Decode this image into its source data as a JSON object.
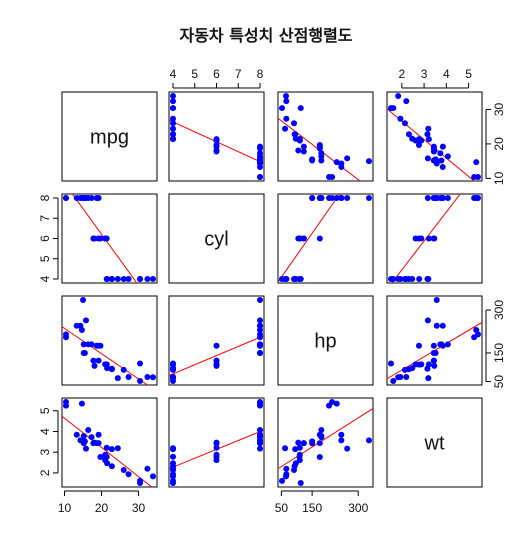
{
  "chart_data": {
    "type": "scatter",
    "title": "자동차 특성치 산점행렬도",
    "variables": [
      "mpg",
      "cyl",
      "hp",
      "wt"
    ],
    "ranges": {
      "mpg": [
        10.4,
        33.9
      ],
      "cyl": [
        4,
        8
      ],
      "hp": [
        52,
        335
      ],
      "wt": [
        1.513,
        5.424
      ]
    },
    "ticks": {
      "mpg": [
        10,
        20,
        30
      ],
      "cyl": [
        4,
        5,
        6,
        7,
        8
      ],
      "hp": [
        50,
        150,
        300
      ],
      "wt": [
        2,
        3,
        4,
        5
      ]
    },
    "point_color": "#0000ff",
    "line_color": "#ff0000",
    "panel_border_color": "#000000",
    "regression_lines": true,
    "observations": [
      {
        "mpg": 21.0,
        "cyl": 6,
        "hp": 110,
        "wt": 2.62
      },
      {
        "mpg": 21.0,
        "cyl": 6,
        "hp": 110,
        "wt": 2.875
      },
      {
        "mpg": 22.8,
        "cyl": 4,
        "hp": 93,
        "wt": 2.32
      },
      {
        "mpg": 21.4,
        "cyl": 6,
        "hp": 110,
        "wt": 3.215
      },
      {
        "mpg": 18.7,
        "cyl": 8,
        "hp": 175,
        "wt": 3.44
      },
      {
        "mpg": 18.1,
        "cyl": 6,
        "hp": 105,
        "wt": 3.46
      },
      {
        "mpg": 14.3,
        "cyl": 8,
        "hp": 245,
        "wt": 3.57
      },
      {
        "mpg": 24.4,
        "cyl": 4,
        "hp": 62,
        "wt": 3.19
      },
      {
        "mpg": 22.8,
        "cyl": 4,
        "hp": 95,
        "wt": 3.15
      },
      {
        "mpg": 19.2,
        "cyl": 6,
        "hp": 123,
        "wt": 3.44
      },
      {
        "mpg": 17.8,
        "cyl": 6,
        "hp": 123,
        "wt": 3.44
      },
      {
        "mpg": 16.4,
        "cyl": 8,
        "hp": 180,
        "wt": 4.07
      },
      {
        "mpg": 17.3,
        "cyl": 8,
        "hp": 180,
        "wt": 3.73
      },
      {
        "mpg": 15.2,
        "cyl": 8,
        "hp": 180,
        "wt": 3.78
      },
      {
        "mpg": 10.4,
        "cyl": 8,
        "hp": 205,
        "wt": 5.25
      },
      {
        "mpg": 10.4,
        "cyl": 8,
        "hp": 215,
        "wt": 5.424
      },
      {
        "mpg": 14.7,
        "cyl": 8,
        "hp": 230,
        "wt": 5.345
      },
      {
        "mpg": 32.4,
        "cyl": 4,
        "hp": 66,
        "wt": 2.2
      },
      {
        "mpg": 30.4,
        "cyl": 4,
        "hp": 52,
        "wt": 1.615
      },
      {
        "mpg": 33.9,
        "cyl": 4,
        "hp": 65,
        "wt": 1.835
      },
      {
        "mpg": 21.5,
        "cyl": 4,
        "hp": 97,
        "wt": 2.465
      },
      {
        "mpg": 15.5,
        "cyl": 8,
        "hp": 150,
        "wt": 3.52
      },
      {
        "mpg": 15.2,
        "cyl": 8,
        "hp": 150,
        "wt": 3.435
      },
      {
        "mpg": 13.3,
        "cyl": 8,
        "hp": 245,
        "wt": 3.84
      },
      {
        "mpg": 19.2,
        "cyl": 8,
        "hp": 175,
        "wt": 3.845
      },
      {
        "mpg": 27.3,
        "cyl": 4,
        "hp": 66,
        "wt": 1.935
      },
      {
        "mpg": 26.0,
        "cyl": 4,
        "hp": 91,
        "wt": 2.14
      },
      {
        "mpg": 30.4,
        "cyl": 4,
        "hp": 113,
        "wt": 1.513
      },
      {
        "mpg": 15.8,
        "cyl": 8,
        "hp": 264,
        "wt": 3.17
      },
      {
        "mpg": 19.7,
        "cyl": 6,
        "hp": 175,
        "wt": 2.77
      },
      {
        "mpg": 15.0,
        "cyl": 8,
        "hp": 335,
        "wt": 3.57
      },
      {
        "mpg": 21.4,
        "cyl": 4,
        "hp": 109,
        "wt": 2.78
      }
    ]
  }
}
